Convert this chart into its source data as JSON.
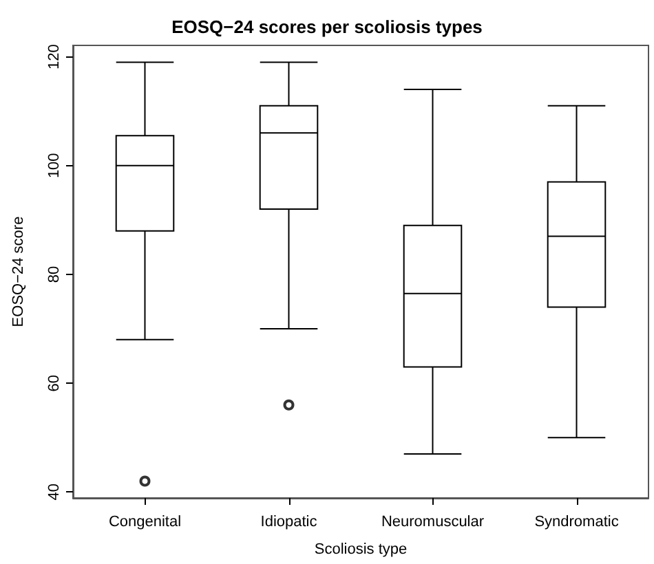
{
  "chart_data": {
    "type": "box",
    "title": "EOSQ−24 scores per scoliosis types",
    "xlabel": "Scoliosis type",
    "ylabel": "EOSQ−24 score",
    "categories": [
      "Congenital",
      "Idiopatic",
      "Neuromuscular",
      "Syndromatic"
    ],
    "boxes": [
      {
        "low": 68,
        "q1": 88,
        "median": 100,
        "q3": 105.5,
        "high": 119,
        "outliers": [
          42
        ]
      },
      {
        "low": 70,
        "q1": 92,
        "median": 106,
        "q3": 111,
        "high": 119,
        "outliers": [
          56
        ]
      },
      {
        "low": 47,
        "q1": 63,
        "median": 76.5,
        "q3": 89,
        "high": 114
      },
      {
        "low": 50,
        "q1": 74,
        "median": 87,
        "q3": 97,
        "high": 111
      }
    ],
    "ylim": [
      38.9,
      122.1
    ],
    "yticks": [
      40,
      60,
      80,
      100,
      120
    ],
    "grid": false
  }
}
